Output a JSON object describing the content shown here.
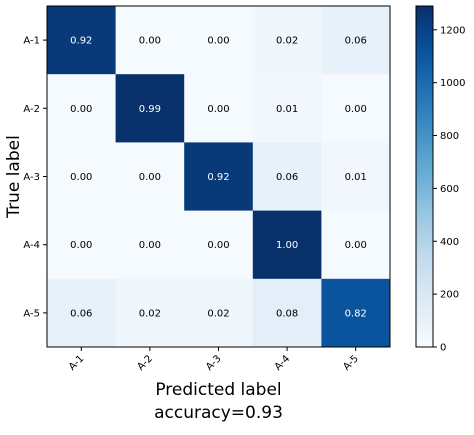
{
  "chart_data": {
    "type": "heatmap",
    "title": "",
    "xlabel": "Predicted label",
    "ylabel": "True label",
    "footer": "accuracy=0.93",
    "x_categories": [
      "A-1",
      "A-2",
      "A-3",
      "A-4",
      "A-5"
    ],
    "y_categories": [
      "A-1",
      "A-2",
      "A-3",
      "A-4",
      "A-5"
    ],
    "values": [
      [
        0.92,
        0.0,
        0.0,
        0.02,
        0.06
      ],
      [
        0.0,
        0.99,
        0.0,
        0.01,
        0.0
      ],
      [
        0.0,
        0.0,
        0.92,
        0.06,
        0.01
      ],
      [
        0.0,
        0.0,
        0.0,
        1.0,
        0.0
      ],
      [
        0.06,
        0.02,
        0.02,
        0.08,
        0.82
      ]
    ],
    "value_labels": [
      [
        "0.92",
        "0.00",
        "0.00",
        "0.02",
        "0.06"
      ],
      [
        "0.00",
        "0.99",
        "0.00",
        "0.01",
        "0.00"
      ],
      [
        "0.00",
        "0.00",
        "0.92",
        "0.06",
        "0.01"
      ],
      [
        "0.00",
        "0.00",
        "0.00",
        "1.00",
        "0.00"
      ],
      [
        "0.06",
        "0.02",
        "0.02",
        "0.08",
        "0.82"
      ]
    ],
    "colorbar": {
      "min": 0,
      "max": 1290,
      "ticks": [
        0,
        200,
        400,
        600,
        800,
        1000,
        1200
      ],
      "colormap": "Blues",
      "color_low": "#f7fbff",
      "color_high": "#08306b"
    },
    "grid": false
  }
}
